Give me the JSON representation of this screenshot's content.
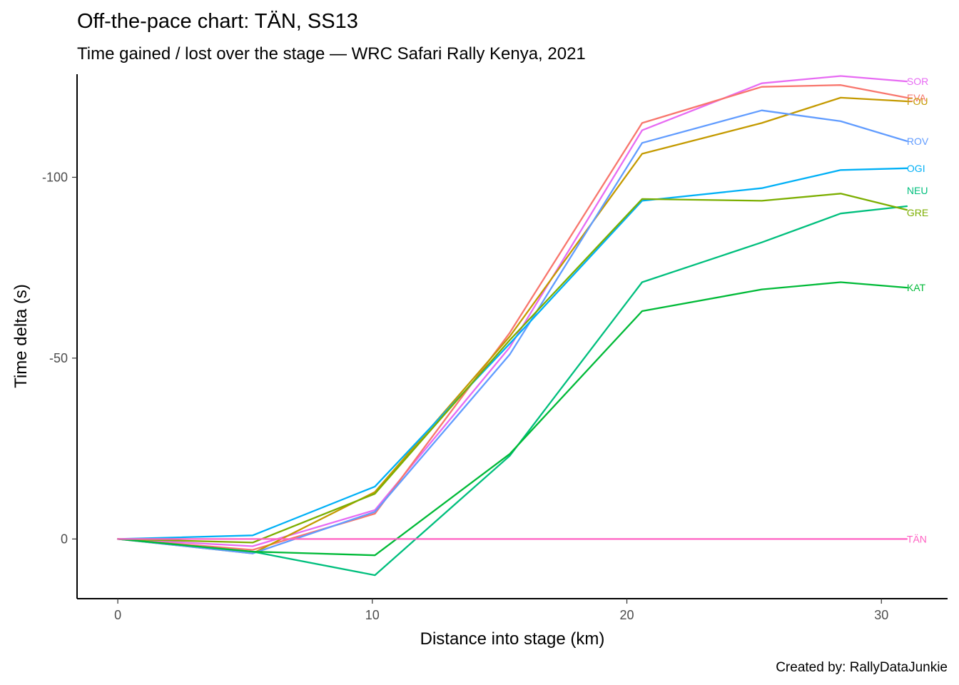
{
  "chart_data": {
    "type": "line",
    "title": "Off-the-pace chart: TÄN, SS13",
    "subtitle": "Time gained / lost over the stage — WRC Safari Rally Kenya, 2021",
    "xlabel": "Distance into stage (km)",
    "ylabel": "Time delta (s)",
    "caption": "Created by: RallyDataJunkie",
    "xlim": [
      -1.6,
      32.6
    ],
    "ylim": [
      -128.5,
      16.5
    ],
    "y_reversed": true,
    "grid": false,
    "legend": "none",
    "x": [
      0,
      5.3,
      10.1,
      15.4,
      20.6,
      25.3,
      28.4,
      31
    ],
    "x_ticks": [
      0,
      10,
      20,
      30
    ],
    "x_tick_labels": [
      "0",
      "10",
      "20",
      "30"
    ],
    "y_ticks": [
      -100,
      -50,
      0
    ],
    "y_tick_labels": [
      "-100",
      "-50",
      "0"
    ],
    "series": [
      {
        "name": "SOR",
        "color": "#E76BF3",
        "values": [
          0,
          2,
          -8,
          -53,
          -113,
          -126,
          -128,
          -126.5
        ]
      },
      {
        "name": "EVA",
        "color": "#F8766D",
        "values": [
          0,
          3,
          -7,
          -57,
          -115,
          -125,
          -125.5,
          -122
        ]
      },
      {
        "name": "FOU",
        "color": "#C49A00",
        "values": [
          0,
          4,
          -13,
          -56,
          -106.5,
          -115,
          -122,
          -121
        ]
      },
      {
        "name": "ROV",
        "color": "#619CFF",
        "values": [
          0,
          4,
          -7.5,
          -51,
          -109.5,
          -118.5,
          -115.5,
          -110
        ]
      },
      {
        "name": "OGI",
        "color": "#00B0F6",
        "values": [
          0,
          -1,
          -14.5,
          -54,
          -93.5,
          -97,
          -102,
          -102.5
        ]
      },
      {
        "name": "NEU",
        "color": "#00BF7D",
        "values": [
          0,
          3.5,
          10,
          -23,
          -71,
          -82,
          -90,
          -92
        ]
      },
      {
        "name": "GRE",
        "color": "#7CAE00",
        "values": [
          0,
          1,
          -12.5,
          -55,
          -94,
          -93.5,
          -95.5,
          -91
        ]
      },
      {
        "name": "KAT",
        "color": "#00BA38",
        "values": [
          0,
          3.5,
          4.5,
          -23.5,
          -63,
          -69,
          -71,
          -69.5
        ]
      },
      {
        "name": "TÄN",
        "color": "#FF61C3",
        "values": [
          0,
          0,
          0,
          0,
          0,
          0,
          0,
          0
        ]
      }
    ]
  }
}
